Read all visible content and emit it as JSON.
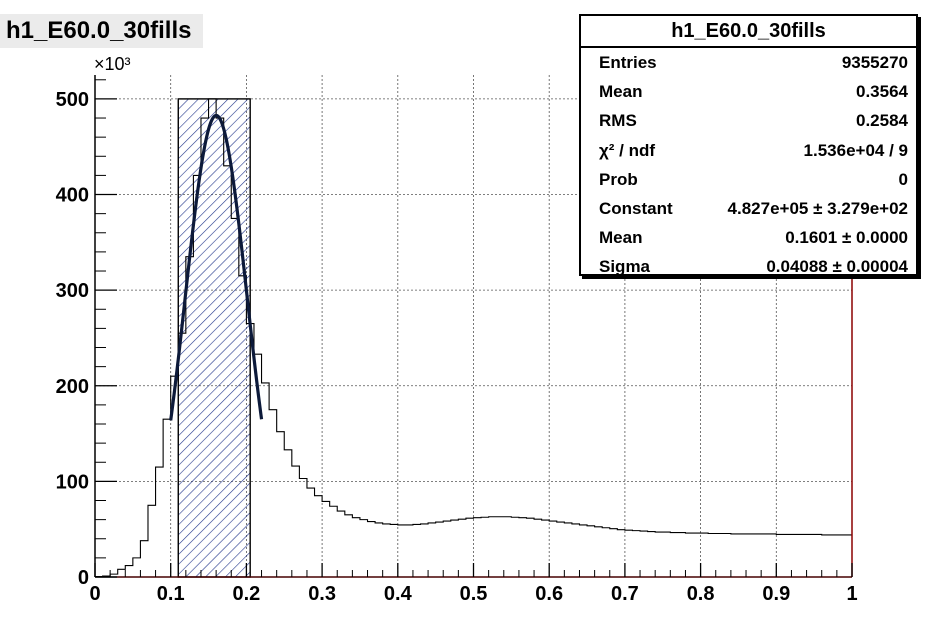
{
  "title": "h1_E60.0_30fills",
  "stats_box": {
    "title": "h1_E60.0_30fills",
    "rows": [
      {
        "label": "Entries",
        "value": "9355270"
      },
      {
        "label": "Mean",
        "value": "0.3564"
      },
      {
        "label": "RMS",
        "value": "0.2584"
      },
      {
        "label": "χ² / ndf",
        "value": "1.536e+04 / 9"
      },
      {
        "label": "Prob",
        "value": "0"
      },
      {
        "label": "Constant",
        "value": "4.827e+05 ± 3.279e+02"
      },
      {
        "label": "Mean",
        "value": "0.1601 ± 0.0000"
      },
      {
        "label": "Sigma",
        "value": "0.04088 ± 0.00004"
      }
    ]
  },
  "chart_data": {
    "type": "histogram",
    "xlim": [
      0,
      1
    ],
    "ylim": [
      0,
      525000
    ],
    "y_exponent_label": "×10³",
    "x_ticks": [
      "0",
      "0.1",
      "0.2",
      "0.3",
      "0.4",
      "0.5",
      "0.6",
      "0.7",
      "0.8",
      "0.9",
      "1"
    ],
    "y_ticks": [
      "0",
      "100",
      "200",
      "300",
      "400",
      "500"
    ],
    "grid": true,
    "bin_width": 0.01,
    "bin_contents": [
      500,
      1000,
      3000,
      8000,
      12000,
      20000,
      38000,
      75000,
      115000,
      165000,
      210000,
      255000,
      335000,
      420000,
      480000,
      500000,
      480000,
      430000,
      375000,
      315000,
      265000,
      233000,
      203000,
      175000,
      152000,
      133000,
      116000,
      103000,
      93000,
      85000,
      79000,
      74000,
      69000,
      65000,
      62000,
      60000,
      58000,
      56500,
      55500,
      55000,
      54500,
      54500,
      55000,
      55500,
      56500,
      57500,
      58500,
      59500,
      60500,
      61500,
      62000,
      62500,
      63000,
      63000,
      63000,
      62500,
      62000,
      61500,
      60500,
      59500,
      58500,
      57500,
      56500,
      55500,
      54500,
      53500,
      52500,
      51500,
      50500,
      49500,
      49000,
      48500,
      48000,
      47500,
      47000,
      47000,
      46500,
      46500,
      46000,
      46000,
      46000,
      45500,
      45500,
      45500,
      45000,
      45000,
      45000,
      45000,
      45000,
      45000,
      44500,
      44500,
      44500,
      44500,
      44500,
      44500,
      44000,
      44000,
      44000,
      44000
    ],
    "highlight_band": {
      "x_from": 0.11,
      "x_to": 0.205,
      "y_top": 500000
    },
    "gauss_fit": {
      "constant": 482700,
      "mean": 0.1601,
      "sigma": 0.04088,
      "x_from": 0.1,
      "x_to": 0.22
    }
  }
}
